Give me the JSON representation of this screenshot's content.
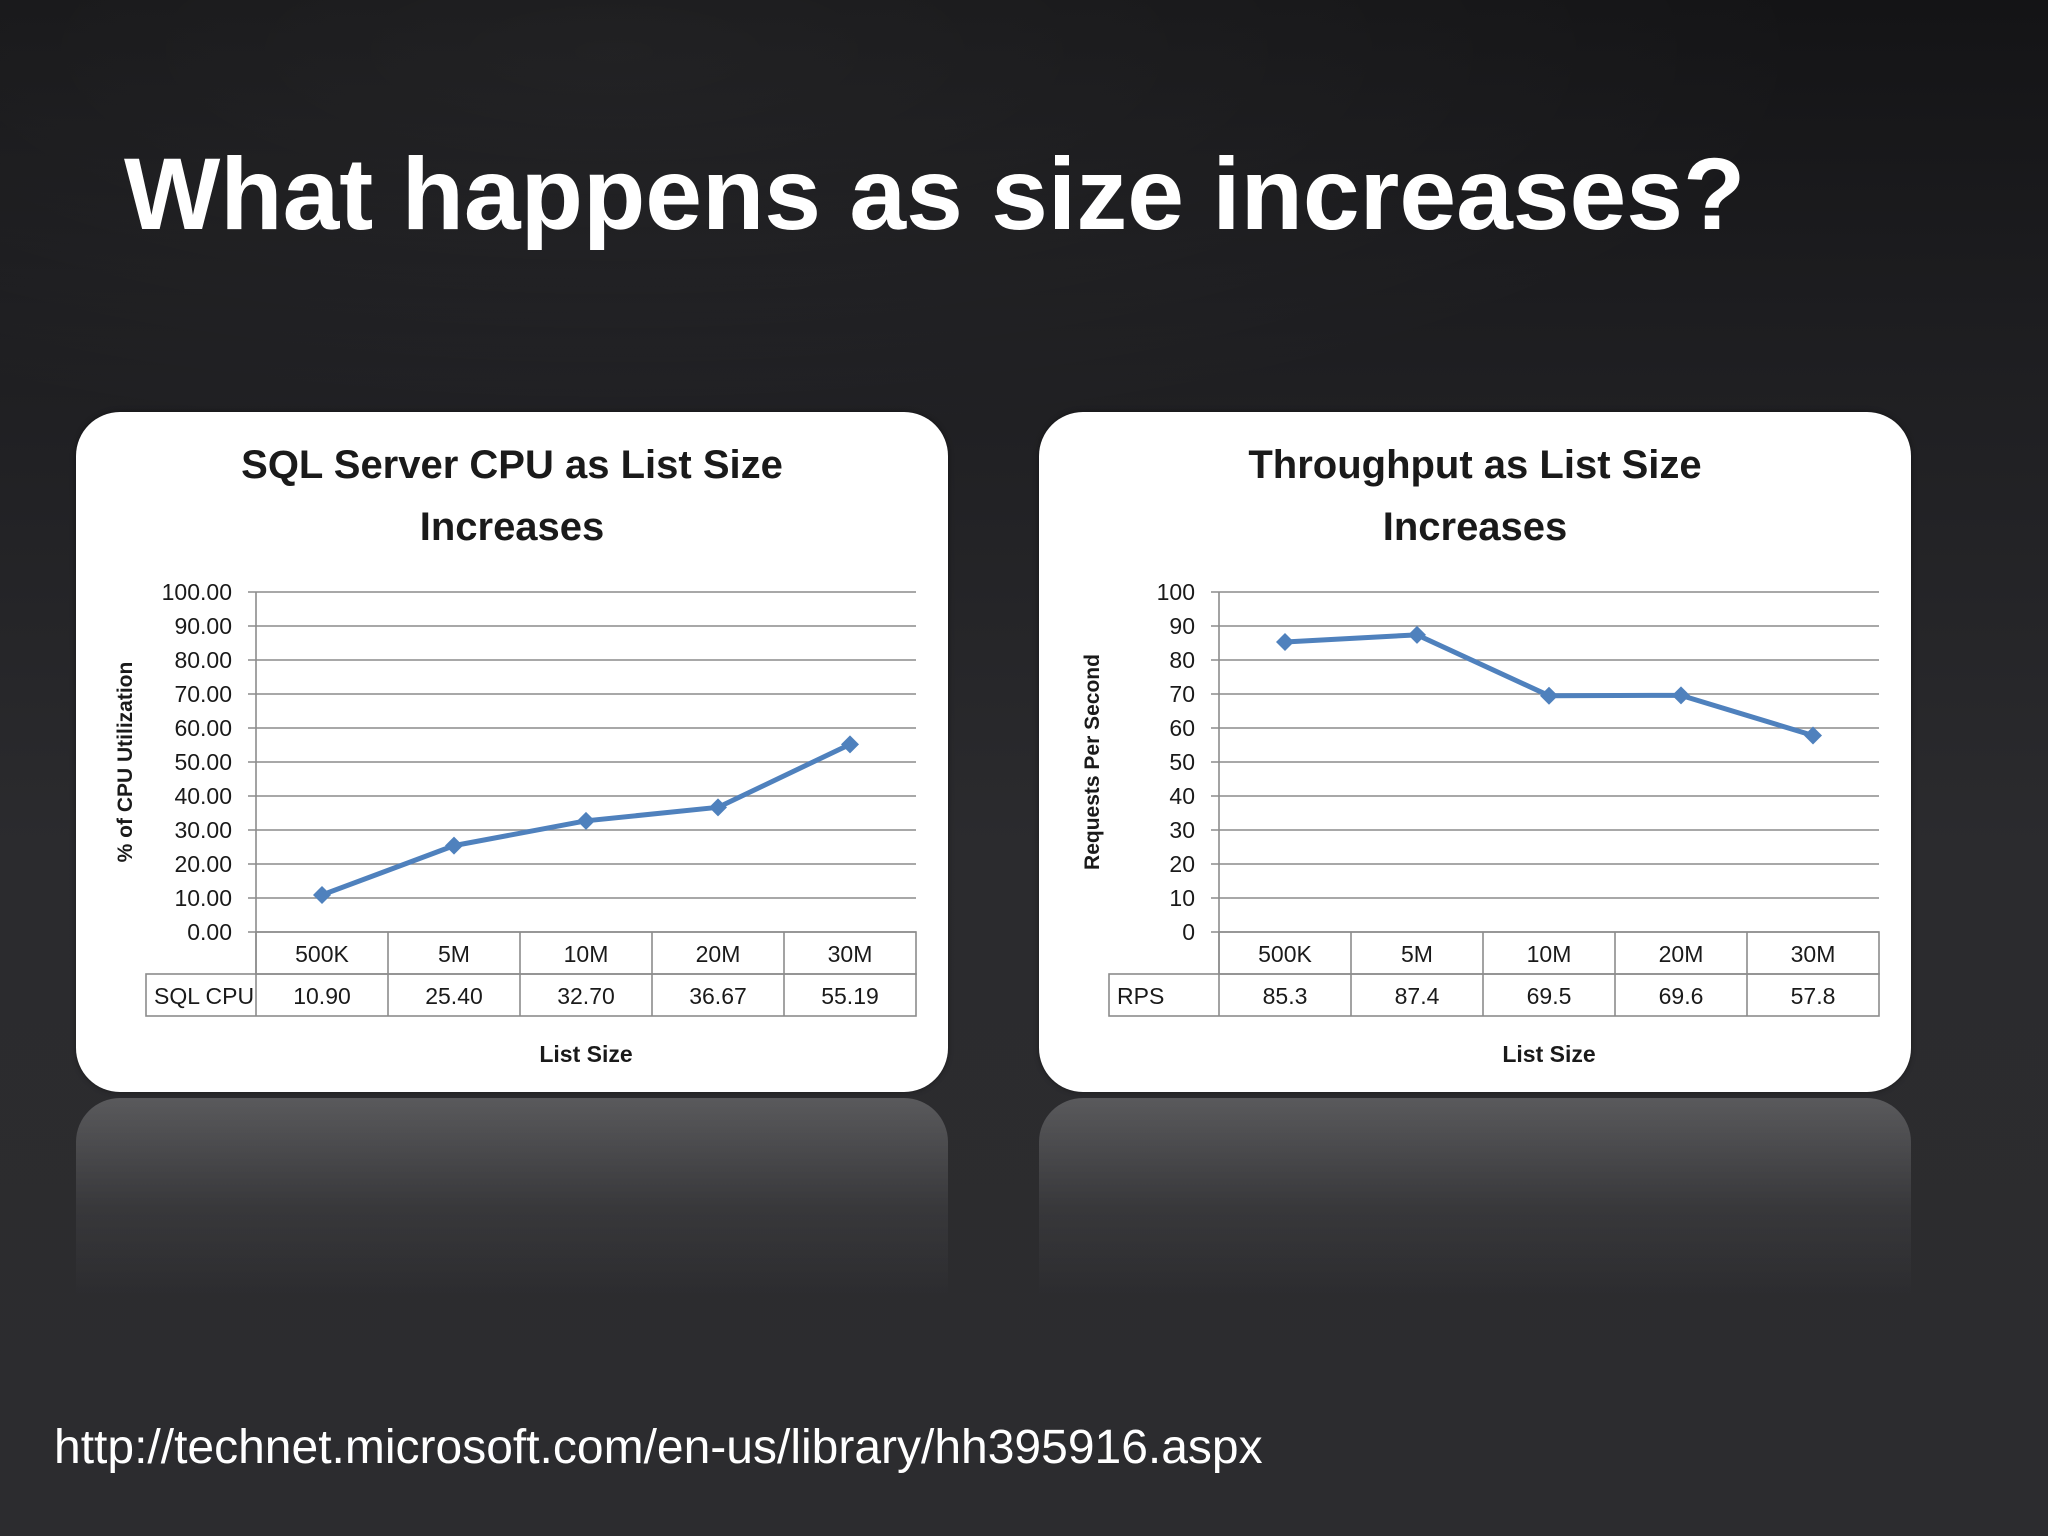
{
  "slide": {
    "title": "What happens as size increases?",
    "source_url": "http://technet.microsoft.com/en-us/library/hh395916.aspx"
  },
  "colors": {
    "series_line": "#4f81bd",
    "grid": "#8c8c8c",
    "card_background": "#ffffff",
    "slide_background": "#2b2b2e"
  },
  "chart_data": [
    {
      "type": "line",
      "title_lines": [
        "SQL Server CPU as List Size",
        "Increases"
      ],
      "xlabel": "List Size",
      "ylabel": "% of CPU Utilization",
      "categories": [
        "500K",
        "5M",
        "10M",
        "20M",
        "30M"
      ],
      "series": [
        {
          "name": "SQL CPU",
          "values": [
            10.9,
            25.4,
            32.7,
            36.67,
            55.19
          ],
          "value_labels": [
            "10.90",
            "25.40",
            "32.70",
            "36.67",
            "55.19"
          ]
        }
      ],
      "ylim": [
        0,
        100
      ],
      "yticks": [
        "0.00",
        "10.00",
        "20.00",
        "30.00",
        "40.00",
        "50.00",
        "60.00",
        "70.00",
        "80.00",
        "90.00",
        "100.00"
      ],
      "grid": true,
      "data_table": true,
      "marker": "diamond"
    },
    {
      "type": "line",
      "title_lines": [
        "Throughput as List Size",
        "Increases"
      ],
      "xlabel": "List Size",
      "ylabel": "Requests Per Second",
      "categories": [
        "500K",
        "5M",
        "10M",
        "20M",
        "30M"
      ],
      "series": [
        {
          "name": "RPS",
          "values": [
            85.3,
            87.4,
            69.5,
            69.6,
            57.8
          ],
          "value_labels": [
            "85.3",
            "87.4",
            "69.5",
            "69.6",
            "57.8"
          ]
        }
      ],
      "ylim": [
        0,
        100
      ],
      "yticks": [
        "0",
        "10",
        "20",
        "30",
        "40",
        "50",
        "60",
        "70",
        "80",
        "90",
        "100"
      ],
      "grid": true,
      "data_table": true,
      "marker": "diamond"
    }
  ]
}
